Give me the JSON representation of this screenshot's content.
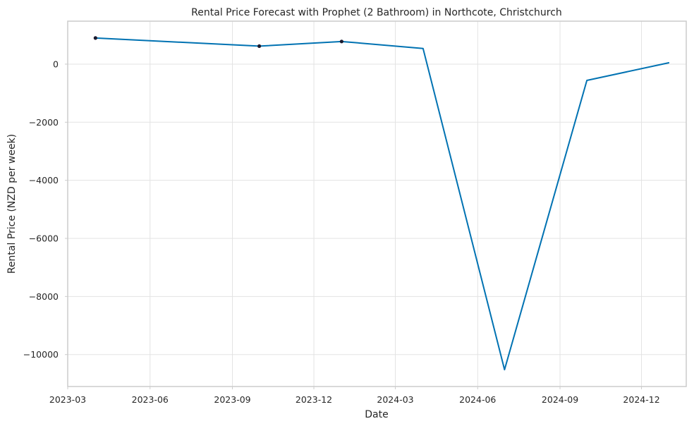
{
  "chart_data": {
    "type": "line",
    "title": "Rental Price Forecast with Prophet (2 Bathroom) in Northcote, Christchurch",
    "xlabel": "Date",
    "ylabel": "Rental Price (NZD per week)",
    "x_ticks": [
      "2023-03",
      "2023-06",
      "2023-09",
      "2023-12",
      "2024-03",
      "2024-06",
      "2024-09",
      "2024-12"
    ],
    "y_ticks": [
      0,
      -2000,
      -4000,
      -6000,
      -8000,
      -10000
    ],
    "y_tick_labels": [
      "0",
      "−2000",
      "−4000",
      "−6000",
      "−8000",
      "−10000"
    ],
    "xlim": [
      "2023-03-01",
      "2025-01-20"
    ],
    "ylim": [
      -11100,
      1480
    ],
    "grid": true,
    "series": [
      {
        "role": "forecast",
        "style": "line",
        "color": "#0072B2",
        "x": [
          "2023-04-01",
          "2023-10-01",
          "2024-01-01",
          "2024-04-01",
          "2024-07-01",
          "2024-10-01",
          "2025-01-01"
        ],
        "y": [
          900,
          620,
          780,
          540,
          -10520,
          -560,
          50
        ]
      },
      {
        "role": "observed",
        "style": "points",
        "color": "#1a1a2e",
        "x": [
          "2023-04-01",
          "2023-10-01",
          "2024-01-01"
        ],
        "y": [
          900,
          620,
          780
        ]
      }
    ]
  }
}
